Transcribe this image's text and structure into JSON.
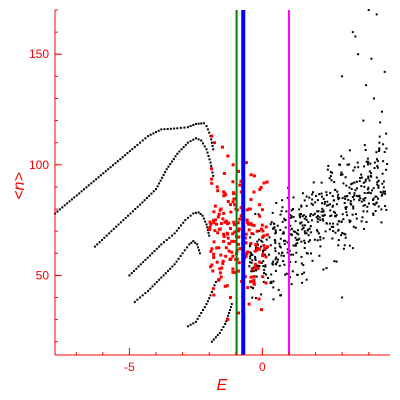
{
  "chart_data": {
    "type": "scatter",
    "title": "",
    "xlabel": "E",
    "ylabel": "<n>",
    "xlim": [
      -7.8,
      4.8
    ],
    "ylim": [
      14,
      170
    ],
    "x_ticks": [
      -5,
      0
    ],
    "y_ticks": [
      50,
      100,
      150
    ],
    "grid": false,
    "legend": "none",
    "vertical_lines": [
      {
        "x": -0.97,
        "color": "#008000"
      },
      {
        "x": -0.72,
        "color": "#0000ff"
      },
      {
        "x": 1.0,
        "color": "#ff00ff"
      }
    ],
    "series": [
      {
        "kind": "curve",
        "color": "#000000",
        "points": [
          [
            -7.8,
            78
          ],
          [
            -6.8,
            88
          ],
          [
            -5.8,
            98
          ],
          [
            -4.8,
            108
          ],
          [
            -4.3,
            113
          ],
          [
            -3.8,
            116
          ],
          [
            -3.2,
            116.5
          ],
          [
            -2.8,
            117
          ],
          [
            -2.5,
            118.5
          ],
          [
            -2.2,
            118.8
          ],
          [
            -2.1,
            117.5
          ],
          [
            -1.95,
            113
          ],
          [
            -1.85,
            107
          ]
        ]
      },
      {
        "kind": "curve",
        "color": "#000000",
        "points": [
          [
            -6.3,
            63
          ],
          [
            -5.5,
            72
          ],
          [
            -4.6,
            82
          ],
          [
            -4.0,
            89
          ],
          [
            -3.6,
            98
          ],
          [
            -3.2,
            105
          ],
          [
            -2.8,
            110
          ],
          [
            -2.5,
            112
          ],
          [
            -2.3,
            111
          ],
          [
            -2.1,
            107
          ],
          [
            -1.95,
            101
          ],
          [
            -1.85,
            95
          ]
        ]
      },
      {
        "kind": "curve",
        "color": "#000000",
        "points": [
          [
            -5.0,
            50
          ],
          [
            -4.4,
            57
          ],
          [
            -3.8,
            64
          ],
          [
            -3.3,
            69
          ],
          [
            -2.9,
            75
          ],
          [
            -2.6,
            78
          ],
          [
            -2.4,
            78.5
          ],
          [
            -2.25,
            77
          ],
          [
            -2.1,
            73
          ],
          [
            -2.0,
            68
          ]
        ]
      },
      {
        "kind": "curve",
        "color": "#000000",
        "points": [
          [
            -4.8,
            38
          ],
          [
            -4.3,
            43
          ],
          [
            -3.8,
            49
          ],
          [
            -3.3,
            55
          ],
          [
            -3.0,
            60
          ],
          [
            -2.75,
            64
          ],
          [
            -2.6,
            65.5
          ],
          [
            -2.45,
            64
          ],
          [
            -2.35,
            60
          ]
        ]
      },
      {
        "kind": "curve",
        "color": "#000000",
        "points": [
          [
            -2.8,
            27
          ],
          [
            -2.5,
            29
          ],
          [
            -2.3,
            33
          ],
          [
            -2.1,
            37
          ],
          [
            -1.95,
            41
          ],
          [
            -1.85,
            44
          ],
          [
            -1.75,
            47
          ]
        ]
      },
      {
        "kind": "curve",
        "color": "#000000",
        "points": [
          [
            -1.9,
            20
          ],
          [
            -1.6,
            24
          ],
          [
            -1.4,
            28
          ],
          [
            -1.25,
            33
          ],
          [
            -1.15,
            37
          ]
        ]
      },
      {
        "kind": "cloud",
        "color": "#000000",
        "marker": "small",
        "seed": 7,
        "count": 520,
        "x_range": [
          -0.5,
          4.7
        ],
        "y_base": 55,
        "y_slope": 8,
        "y_spread": 30,
        "extra_points": [
          [
            4.0,
            170
          ],
          [
            4.3,
            168
          ],
          [
            3.4,
            160
          ],
          [
            3.5,
            158
          ],
          [
            3.6,
            150
          ],
          [
            4.1,
            148
          ],
          [
            3.0,
            140
          ],
          [
            3.9,
            136
          ],
          [
            4.5,
            124
          ],
          [
            4.4,
            110
          ],
          [
            3.2,
            100
          ],
          [
            2.6,
            93
          ],
          [
            3.0,
            40
          ],
          [
            1.1,
            46
          ],
          [
            0.7,
            41
          ],
          [
            3.8,
            120
          ],
          [
            4.6,
            142
          ],
          [
            4.2,
            130
          ]
        ]
      },
      {
        "kind": "cloud",
        "color": "#ff0000",
        "marker": "large",
        "seed": 23,
        "count": 180,
        "x_range": [
          -2.0,
          0.2
        ],
        "y_base": 72,
        "y_slope": -4,
        "y_spread": 40,
        "extra_points": [
          [
            -1.9,
            113
          ],
          [
            -1.8,
            110
          ],
          [
            -1.5,
            108
          ],
          [
            -1.3,
            104
          ],
          [
            -1.1,
            100
          ],
          [
            -0.9,
            97
          ],
          [
            -0.6,
            101
          ],
          [
            -0.3,
            95
          ],
          [
            -1.7,
            90
          ],
          [
            -1.45,
            86
          ],
          [
            -1.2,
            82
          ],
          [
            -1.0,
            80
          ],
          [
            -0.8,
            77
          ],
          [
            -0.5,
            80
          ],
          [
            -0.2,
            70
          ],
          [
            -1.9,
            62
          ],
          [
            -1.6,
            53
          ],
          [
            -1.4,
            45
          ],
          [
            -1.2,
            40
          ],
          [
            -0.9,
            33
          ],
          [
            -0.7,
            31
          ],
          [
            -0.5,
            37
          ],
          [
            -0.3,
            46
          ],
          [
            -0.1,
            56
          ],
          [
            0.1,
            62
          ],
          [
            -1.3,
            30
          ]
        ]
      }
    ]
  }
}
